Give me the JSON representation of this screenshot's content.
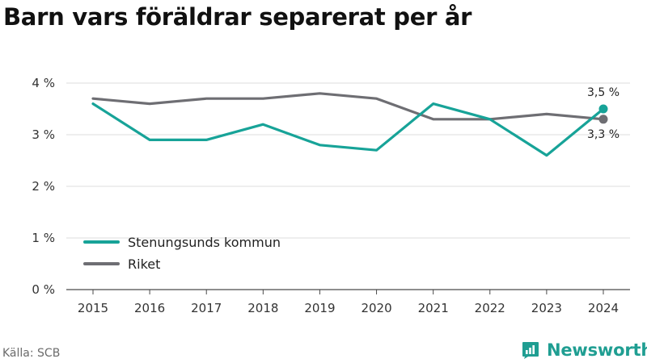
{
  "title": "Barn vars föräldrar separerat per år",
  "source": "Källa: SCB",
  "brand": {
    "name": "Newsworthy",
    "icon": "newsworthy-logo-icon",
    "color": "#1f9e92"
  },
  "chart_data": {
    "type": "line",
    "title": "Barn vars föräldrar separerat per år",
    "xlabel": "",
    "ylabel": "",
    "x": [
      "2015",
      "2016",
      "2017",
      "2018",
      "2019",
      "2020",
      "2021",
      "2022",
      "2023",
      "2024"
    ],
    "ylim": [
      0,
      4
    ],
    "yticks": [
      0,
      1,
      2,
      3,
      4
    ],
    "ytick_labels": [
      "0 %",
      "1 %",
      "2 %",
      "3 %",
      "4 %"
    ],
    "grid": true,
    "legend_position": "bottom-left",
    "series": [
      {
        "name": "Stenungsunds kommun",
        "color": "#17a398",
        "values": [
          3.6,
          2.9,
          2.9,
          3.2,
          2.8,
          2.7,
          3.6,
          3.3,
          2.6,
          3.5
        ],
        "end_label": "3,5 %"
      },
      {
        "name": "Riket",
        "color": "#6e6e73",
        "values": [
          3.7,
          3.6,
          3.7,
          3.7,
          3.8,
          3.7,
          3.3,
          3.3,
          3.4,
          3.3
        ],
        "end_label": "3,3 %"
      }
    ]
  }
}
